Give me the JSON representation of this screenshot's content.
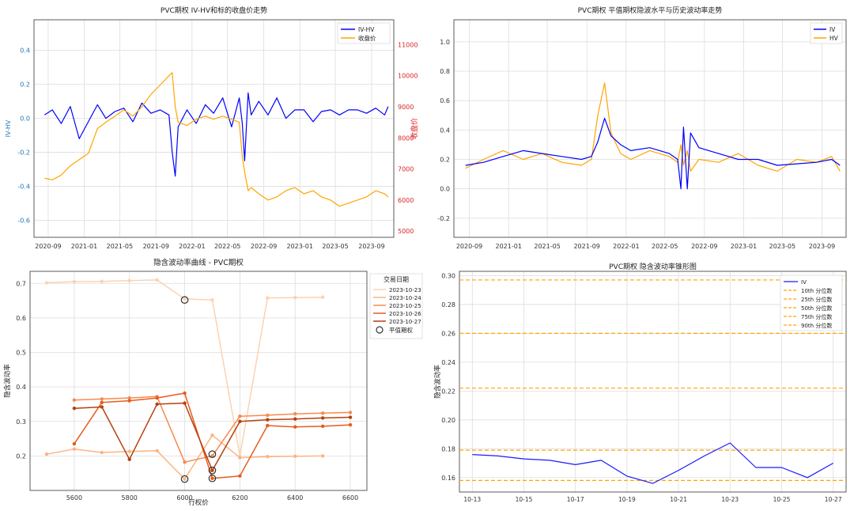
{
  "chart_data": [
    {
      "type": "line",
      "title": "PVC期权 IV-HV和标的收盘价走势",
      "ylabel": "IV-HV",
      "y2label": "收盘价",
      "x_ticks": [
        "2020-09",
        "2021-01",
        "2021-05",
        "2021-09",
        "2022-01",
        "2022-05",
        "2022-09",
        "2023-01",
        "2023-05",
        "2023-09"
      ],
      "ylim": [
        -0.7,
        0.58
      ],
      "y_ticks": [
        "0.4",
        "0.2",
        "0.0",
        "-0.2",
        "-0.4",
        "-0.6"
      ],
      "y2lim": [
        4800,
        11800
      ],
      "y2_ticks": [
        "11000",
        "10000",
        "9000",
        "8000",
        "7000",
        "6000",
        "5000"
      ],
      "legend": [
        "IV-HV",
        "收盘价"
      ],
      "legend_position": "top-right",
      "grid": true,
      "colors": {
        "iv_hv": "#0000ff",
        "close": "#ffa500",
        "right_axis": "#dd2222",
        "left_axis": "#1f77b4"
      },
      "series": [
        {
          "name": "IV-HV",
          "axis": "left",
          "x": [
            "2020-08-20",
            "2020-09-15",
            "2020-10-15",
            "2020-11-15",
            "2020-12-15",
            "2021-01-15",
            "2021-02-15",
            "2021-03-15",
            "2021-04-15",
            "2021-05-15",
            "2021-06-15",
            "2021-07-15",
            "2021-08-15",
            "2021-09-15",
            "2021-10-15",
            "2021-10-26",
            "2021-11-05",
            "2021-11-15",
            "2021-12-15",
            "2022-01-15",
            "2022-02-15",
            "2022-03-15",
            "2022-04-15",
            "2022-05-15",
            "2022-06-10",
            "2022-06-20",
            "2022-06-28",
            "2022-07-10",
            "2022-07-20",
            "2022-08-15",
            "2022-09-15",
            "2022-10-15",
            "2022-11-15",
            "2022-12-15",
            "2023-01-15",
            "2023-02-15",
            "2023-03-15",
            "2023-04-15",
            "2023-05-15",
            "2023-06-15",
            "2023-07-15",
            "2023-08-15",
            "2023-09-15",
            "2023-10-15",
            "2023-10-27"
          ],
          "values": [
            0.02,
            0.05,
            -0.03,
            0.07,
            -0.12,
            -0.02,
            0.08,
            0.0,
            0.04,
            0.06,
            -0.02,
            0.09,
            0.03,
            0.05,
            0.02,
            -0.2,
            -0.34,
            -0.05,
            0.05,
            -0.03,
            0.08,
            0.03,
            0.12,
            -0.05,
            0.12,
            -0.03,
            -0.25,
            0.15,
            0.02,
            0.1,
            0.02,
            0.12,
            0.0,
            0.05,
            0.05,
            -0.02,
            0.04,
            0.05,
            0.02,
            0.05,
            0.05,
            0.03,
            0.06,
            0.02,
            0.07
          ]
        },
        {
          "name": "收盘价",
          "axis": "right",
          "x": [
            "2020-08-20",
            "2020-09-15",
            "2020-10-15",
            "2020-11-15",
            "2020-12-15",
            "2021-01-15",
            "2021-02-15",
            "2021-03-15",
            "2021-04-15",
            "2021-05-15",
            "2021-06-15",
            "2021-07-15",
            "2021-08-15",
            "2021-09-15",
            "2021-10-15",
            "2021-10-26",
            "2021-11-05",
            "2021-11-15",
            "2021-12-15",
            "2022-01-15",
            "2022-02-15",
            "2022-03-15",
            "2022-04-15",
            "2022-05-15",
            "2022-06-10",
            "2022-06-20",
            "2022-06-28",
            "2022-07-10",
            "2022-07-20",
            "2022-08-15",
            "2022-09-15",
            "2022-10-15",
            "2022-11-15",
            "2022-12-15",
            "2023-01-15",
            "2023-02-15",
            "2023-03-15",
            "2023-04-15",
            "2023-05-15",
            "2023-06-15",
            "2023-07-15",
            "2023-08-15",
            "2023-09-15",
            "2023-10-15",
            "2023-10-27"
          ],
          "values": [
            6700,
            6650,
            6800,
            7100,
            7300,
            7500,
            8300,
            8500,
            8700,
            8900,
            8700,
            9000,
            9400,
            9700,
            10000,
            10100,
            9000,
            8500,
            8400,
            8600,
            8700,
            8600,
            8700,
            8600,
            8500,
            7400,
            6900,
            6300,
            6400,
            6200,
            6000,
            6100,
            6300,
            6400,
            6200,
            6300,
            6100,
            6000,
            5800,
            5900,
            6000,
            6100,
            6300,
            6200,
            6100
          ]
        }
      ]
    },
    {
      "type": "line",
      "title": "PVC期权 平值期权隐波水平与历史波动率走势",
      "x_ticks": [
        "2020-09",
        "2021-01",
        "2021-05",
        "2021-09",
        "2022-01",
        "2022-05",
        "2022-09",
        "2023-01",
        "2023-05",
        "2023-09"
      ],
      "ylim": [
        -0.33,
        1.15
      ],
      "y_ticks": [
        "1.0",
        "0.8",
        "0.6",
        "0.4",
        "0.2",
        "0.0",
        "-0.2"
      ],
      "legend": [
        "IV",
        "HV"
      ],
      "legend_position": "top-right",
      "grid": true,
      "series": [
        {
          "name": "IV",
          "x": [
            "2020-08-20",
            "2020-10-15",
            "2020-12-15",
            "2021-02-15",
            "2021-04-15",
            "2021-06-15",
            "2021-08-15",
            "2021-09-15",
            "2021-10-05",
            "2021-10-26",
            "2021-11-15",
            "2021-12-15",
            "2022-01-15",
            "2022-03-15",
            "2022-05-15",
            "2022-06-10",
            "2022-06-20",
            "2022-06-28",
            "2022-07-10",
            "2022-07-20",
            "2022-08-15",
            "2022-10-15",
            "2022-12-15",
            "2023-02-15",
            "2023-04-15",
            "2023-06-15",
            "2023-08-15",
            "2023-10-01",
            "2023-10-27"
          ],
          "values": [
            0.16,
            0.18,
            0.22,
            0.26,
            0.24,
            0.22,
            0.2,
            0.22,
            0.32,
            0.48,
            0.36,
            0.3,
            0.26,
            0.28,
            0.24,
            0.2,
            0.0,
            0.42,
            0.0,
            0.38,
            0.28,
            0.24,
            0.2,
            0.2,
            0.16,
            0.17,
            0.18,
            0.2,
            0.16
          ]
        },
        {
          "name": "HV",
          "x": [
            "2020-08-20",
            "2020-10-15",
            "2020-12-15",
            "2021-02-15",
            "2021-04-15",
            "2021-06-15",
            "2021-08-15",
            "2021-09-15",
            "2021-10-05",
            "2021-10-26",
            "2021-11-15",
            "2021-12-15",
            "2022-01-15",
            "2022-03-15",
            "2022-05-15",
            "2022-06-10",
            "2022-06-20",
            "2022-06-28",
            "2022-07-10",
            "2022-07-20",
            "2022-08-15",
            "2022-10-15",
            "2022-12-15",
            "2023-02-15",
            "2023-04-15",
            "2023-06-15",
            "2023-08-15",
            "2023-10-01",
            "2023-10-27"
          ],
          "values": [
            0.14,
            0.2,
            0.26,
            0.2,
            0.24,
            0.18,
            0.16,
            0.2,
            0.5,
            0.72,
            0.38,
            0.24,
            0.2,
            0.26,
            0.22,
            0.18,
            0.3,
            0.16,
            0.26,
            0.12,
            0.2,
            0.18,
            0.24,
            0.16,
            0.12,
            0.2,
            0.18,
            0.22,
            0.12
          ]
        }
      ]
    },
    {
      "type": "line",
      "title": "隐含波动率曲线 - PVC期权",
      "xlabel": "行权价",
      "ylabel": "隐含波动率",
      "xlim": [
        5440,
        6660
      ],
      "x_ticks": [
        5600,
        5800,
        6000,
        6200,
        6400,
        6600
      ],
      "ylim": [
        0.1,
        0.735
      ],
      "y_ticks": [
        "0.7",
        "0.6",
        "0.5",
        "0.4",
        "0.3",
        "0.2"
      ],
      "legend_title": "交易日期",
      "legend": [
        "2023-10-23",
        "2023-10-24",
        "2023-10-25",
        "2023-10-26",
        "2023-10-27",
        "平值期权"
      ],
      "legend_position": "top-right",
      "grid": true,
      "series": [
        {
          "name": "2023-10-23",
          "color": "#fdd2b0",
          "x": [
            5500,
            5600,
            5700,
            5800,
            5900,
            6000,
            6100,
            6200,
            6300,
            6400,
            6500
          ],
          "values": [
            0.702,
            0.705,
            0.706,
            0.708,
            0.71,
            0.655,
            0.652,
            0.2,
            0.658,
            0.659,
            0.66
          ]
        },
        {
          "name": "2023-10-24",
          "color": "#fbb483",
          "x": [
            5500,
            5600,
            5700,
            5800,
            5900,
            6000,
            6100,
            6200,
            6300,
            6400,
            6500
          ],
          "values": [
            0.205,
            0.22,
            0.21,
            0.213,
            0.215,
            0.133,
            0.26,
            0.195,
            0.198,
            0.199,
            0.2
          ]
        },
        {
          "name": "2023-10-25",
          "color": "#f78a4e",
          "x": [
            5600,
            5700,
            5800,
            5900,
            6000,
            6100,
            6200,
            6300,
            6400,
            6500,
            6600
          ],
          "values": [
            0.362,
            0.365,
            0.368,
            0.372,
            0.182,
            0.2,
            0.315,
            0.318,
            0.322,
            0.324,
            0.326
          ]
        },
        {
          "name": "2023-10-26",
          "color": "#e65c1c",
          "x": [
            5600,
            5700,
            5800,
            5900,
            6000,
            6100,
            6200,
            6300,
            6400,
            6500,
            6600
          ],
          "values": [
            0.235,
            0.355,
            0.36,
            0.368,
            0.382,
            0.135,
            0.142,
            0.288,
            0.284,
            0.286,
            0.29
          ]
        },
        {
          "name": "2023-10-27",
          "color": "#b5410e",
          "x": [
            5600,
            5700,
            5800,
            5900,
            6000,
            6100,
            6200,
            6300,
            6400,
            6500,
            6600
          ],
          "values": [
            0.338,
            0.342,
            0.19,
            0.35,
            0.353,
            0.158,
            0.3,
            0.305,
            0.307,
            0.31,
            0.312
          ]
        }
      ],
      "atm_points": [
        {
          "x": 6000,
          "y": 0.652
        },
        {
          "x": 6000,
          "y": 0.133
        },
        {
          "x": 6100,
          "y": 0.205
        },
        {
          "x": 6100,
          "y": 0.158
        },
        {
          "x": 6100,
          "y": 0.135
        }
      ]
    },
    {
      "type": "line",
      "title": "PVC期权 隐含波动率锥形图",
      "ylabel": "隐含波动率",
      "x": [
        "10-13",
        "10-14",
        "10-15",
        "10-16",
        "10-17",
        "10-18",
        "10-19",
        "10-20",
        "10-21",
        "10-22",
        "10-23",
        "10-24",
        "10-25",
        "10-26",
        "10-27"
      ],
      "x_ticks": [
        "10-13",
        "10-15",
        "10-17",
        "10-19",
        "10-21",
        "10-23",
        "10-25",
        "10-27"
      ],
      "ylim": [
        0.15,
        0.303
      ],
      "y_ticks": [
        "0.30",
        "0.28",
        "0.26",
        "0.24",
        "0.22",
        "0.20",
        "0.18",
        "0.16"
      ],
      "legend": [
        "IV",
        "10th 分位数",
        "25th 分位数",
        "50th 分位数",
        "75th 分位数",
        "90th 分位数"
      ],
      "legend_position": "top-right",
      "grid": true,
      "series": [
        {
          "name": "IV",
          "values": [
            0.176,
            0.175,
            0.173,
            0.172,
            0.169,
            0.172,
            0.161,
            0.156,
            0.165,
            0.175,
            0.184,
            0.167,
            0.167,
            0.16,
            0.17
          ]
        }
      ],
      "quantiles": [
        {
          "name": "10th 分位数",
          "value": 0.158
        },
        {
          "name": "25th 分位数",
          "value": 0.179
        },
        {
          "name": "50th 分位数",
          "value": 0.222
        },
        {
          "name": "75th 分位数",
          "value": 0.26
        },
        {
          "name": "90th 分位数",
          "value": 0.297
        }
      ]
    }
  ]
}
